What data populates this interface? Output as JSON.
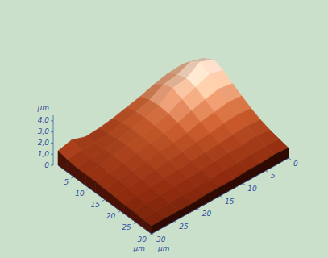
{
  "chart_data": {
    "type": "surface3d",
    "x": [
      0,
      3,
      6,
      9,
      12,
      15,
      18,
      21,
      24,
      27,
      30
    ],
    "y": [
      0,
      3,
      6,
      9,
      12,
      15,
      18,
      21,
      24,
      27,
      30
    ],
    "z": [
      [
        2.6,
        3.4,
        3.9,
        3.6,
        3.0,
        2.5,
        2.0,
        1.6,
        1.3,
        1.1,
        0.9
      ],
      [
        2.9,
        3.8,
        4.4,
        3.9,
        3.2,
        2.6,
        2.1,
        1.7,
        1.4,
        1.1,
        1.0
      ],
      [
        2.8,
        3.3,
        3.6,
        3.4,
        2.9,
        2.4,
        2.0,
        1.6,
        1.3,
        1.1,
        0.9
      ],
      [
        2.5,
        3.1,
        3.4,
        3.0,
        2.6,
        2.2,
        1.8,
        1.5,
        1.3,
        1.0,
        0.9
      ],
      [
        2.1,
        2.4,
        2.5,
        2.4,
        2.2,
        1.9,
        1.7,
        1.4,
        1.2,
        1.0,
        0.8
      ],
      [
        1.8,
        2.0,
        2.1,
        2.0,
        1.9,
        1.7,
        1.5,
        1.3,
        1.1,
        0.9,
        0.8
      ],
      [
        1.5,
        1.7,
        1.8,
        1.8,
        1.7,
        1.6,
        1.4,
        1.2,
        1.0,
        0.9,
        0.8
      ],
      [
        1.3,
        1.4,
        1.5,
        1.6,
        1.5,
        1.4,
        1.3,
        1.1,
        1.0,
        0.8,
        0.7
      ],
      [
        1.2,
        1.3,
        1.3,
        1.4,
        1.3,
        1.2,
        1.1,
        1.0,
        0.9,
        0.8,
        0.7
      ],
      [
        1.6,
        1.3,
        1.2,
        1.2,
        1.1,
        1.1,
        1.0,
        0.9,
        0.8,
        0.8,
        0.7
      ],
      [
        1.3,
        1.1,
        1.0,
        1.0,
        1.0,
        0.9,
        0.9,
        0.8,
        0.8,
        0.7,
        0.7
      ]
    ],
    "xlim": [
      0,
      30
    ],
    "ylim": [
      0,
      30
    ],
    "zlim": [
      0,
      4.5
    ],
    "xticks": [
      5,
      10,
      15,
      20,
      25,
      30
    ],
    "yticks": [
      0,
      5,
      10,
      15,
      20,
      25,
      30
    ],
    "zticks": [
      0,
      {
        "value": 1,
        "label": "1,0"
      },
      {
        "value": 2,
        "label": "2,0"
      },
      {
        "value": 3,
        "label": "3,0"
      },
      {
        "value": 4,
        "label": "4,0"
      }
    ],
    "x_label": "µm",
    "y_label": "µm",
    "z_label": "µm"
  }
}
